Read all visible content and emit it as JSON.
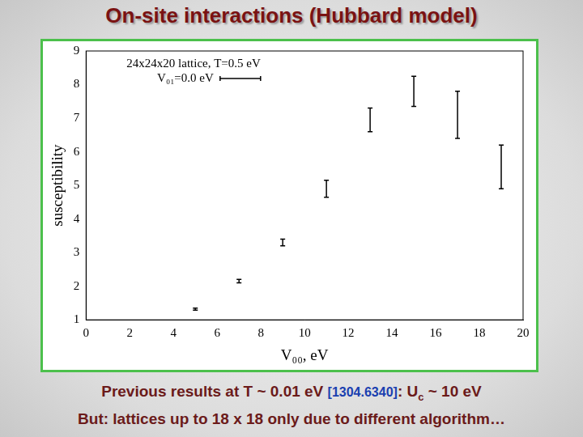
{
  "slide": {
    "title": "On-site interactions (Hubbard model)",
    "caption": [
      [
        {
          "text": "Previous results at T ~ 0.01 eV "
        },
        {
          "text": "[1304.6340]",
          "style": "link"
        },
        {
          "text": ": U"
        },
        {
          "text": "c",
          "style": "sub"
        },
        {
          "text": " ~ 10 eV"
        }
      ],
      [
        {
          "text": "But: lattices up to 18 x 18 only due to different algorithm…"
        }
      ]
    ]
  },
  "chart_data": {
    "type": "scatter",
    "legend_title": "24x24x20 lattice, T=0.5 eV",
    "x_label": "V₀₀, eV",
    "y_label": "susceptibility",
    "x": [
      5,
      7,
      9,
      11,
      13,
      15,
      17,
      19
    ],
    "series": [
      {
        "name": "V₀₁=0.0 eV",
        "color": "#000000",
        "marker": "none",
        "values": [
          1.32,
          2.15,
          3.3,
          4.9,
          6.95,
          7.8,
          7.1,
          5.55
        ],
        "errors": [
          0.03,
          0.05,
          0.1,
          0.25,
          0.35,
          0.45,
          0.7,
          0.65
        ]
      }
    ],
    "xlim": [
      0,
      20
    ],
    "xticks": [
      0,
      2,
      4,
      6,
      8,
      10,
      12,
      14,
      16,
      18,
      20
    ],
    "ylim": [
      1,
      9
    ],
    "yticks": [
      1,
      2,
      3,
      4,
      5,
      6,
      7,
      8,
      9
    ],
    "grid": false,
    "legend": "upper left"
  }
}
